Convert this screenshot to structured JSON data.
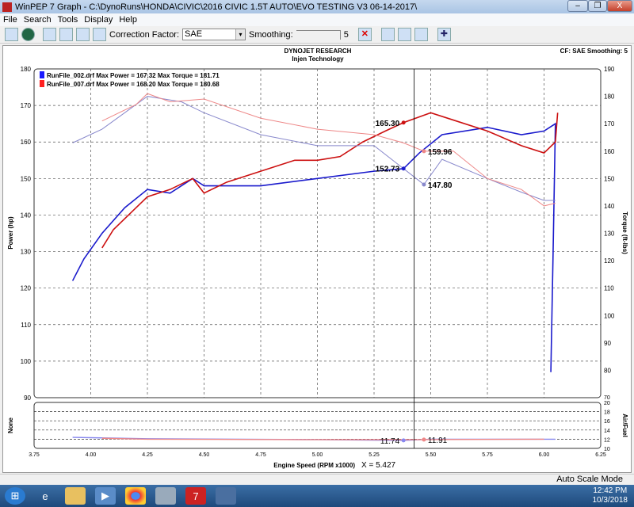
{
  "window": {
    "title": "WinPEP 7    Graph - C:\\DynoRuns\\HONDA\\CIVIC\\2016 CIVIC 1.5T AUTO\\EVO TESTING V3 06-14-2017\\",
    "minimize": "–",
    "maximize": "❐",
    "close": "X"
  },
  "menu": [
    "File",
    "Search",
    "Tools",
    "Display",
    "Help"
  ],
  "toolbar": {
    "correction_label": "Correction Factor:",
    "correction_value": "SAE",
    "smoothing_label": "Smoothing:",
    "smoothing_value": "5"
  },
  "graph": {
    "header1": "DYNOJET RESEARCH",
    "header2": "Injen Technology",
    "cf_info": "CF: SAE  Smoothing: 5",
    "cursor_readout": "X = 5.427"
  },
  "legend": [
    {
      "text": "RunFile_002.drf Max Power = 167.32 Max Torque = 181.71",
      "color": "#1a1aff"
    },
    {
      "text": "RunFile_007.drf Max Power = 168.20 Max Torque = 180.68",
      "color": "#ff2020"
    }
  ],
  "chart_data": {
    "type": "line",
    "xlabel": "Engine Speed (RPM x1000)",
    "xlim": [
      3.75,
      6.25
    ],
    "xticks": [
      "3.75",
      "4.00",
      "4.25",
      "4.50",
      "4.75",
      "5.00",
      "5.25",
      "5.50",
      "5.75",
      "6.00",
      "6.25"
    ],
    "cursor_x": 5.427,
    "main": {
      "ylabel_left": "Power (hp)",
      "ylim_left": [
        90,
        180
      ],
      "yticks_left": [
        "90",
        "100",
        "110",
        "120",
        "130",
        "140",
        "150",
        "160",
        "170",
        "180"
      ],
      "ylabel_right": "Torque (ft-lbs)",
      "ylim_right": [
        70,
        190
      ],
      "yticks_right": [
        "70",
        "80",
        "90",
        "100",
        "110",
        "120",
        "130",
        "140",
        "150",
        "160",
        "170",
        "180",
        "190"
      ],
      "series": [
        {
          "run": "RunFile_002.drf",
          "quantity": "power",
          "axis": "left",
          "color": "#1a1acc",
          "x": [
            3.92,
            3.97,
            4.05,
            4.15,
            4.25,
            4.35,
            4.45,
            4.5,
            4.75,
            5.0,
            5.25,
            5.38,
            5.45,
            5.55,
            5.75,
            5.9,
            6.0,
            6.05,
            6.04,
            6.03
          ],
          "y": [
            122,
            128,
            135,
            142,
            147,
            146,
            150,
            148,
            148,
            150,
            152,
            152.7,
            157,
            162,
            164,
            162,
            163,
            165,
            130,
            97
          ]
        },
        {
          "run": "RunFile_007.drf",
          "quantity": "power",
          "axis": "left",
          "color": "#cc1010",
          "x": [
            4.05,
            4.1,
            4.2,
            4.25,
            4.35,
            4.45,
            4.5,
            4.6,
            4.75,
            4.9,
            5.0,
            5.1,
            5.2,
            5.3,
            5.38,
            5.5,
            5.6,
            5.75,
            5.9,
            6.0,
            6.05,
            6.06
          ],
          "y": [
            131,
            136,
            142,
            145,
            147,
            150,
            146,
            149,
            152,
            155,
            155,
            156,
            160,
            163,
            165.3,
            168,
            166,
            163,
            159,
            157,
            160,
            168
          ]
        },
        {
          "run": "RunFile_002.drf",
          "quantity": "torque",
          "axis": "right",
          "color": "#8888cc",
          "x": [
            3.92,
            4.05,
            4.2,
            4.25,
            4.4,
            4.5,
            4.75,
            5.0,
            5.25,
            5.47,
            5.55,
            5.75,
            5.9,
            6.0,
            6.05
          ],
          "y": [
            163,
            168,
            177,
            180,
            178,
            174,
            166,
            162,
            162,
            147.8,
            157,
            150,
            145,
            142,
            142
          ]
        },
        {
          "run": "RunFile_007.drf",
          "quantity": "torque",
          "axis": "right",
          "color": "#ee8888",
          "x": [
            4.05,
            4.2,
            4.25,
            4.35,
            4.5,
            4.75,
            5.0,
            5.25,
            5.38,
            5.47,
            5.6,
            5.75,
            5.9,
            6.0,
            6.05
          ],
          "y": [
            171,
            177,
            181,
            178,
            179,
            172,
            168,
            166,
            163,
            159.96,
            160,
            150,
            146,
            140,
            141
          ]
        }
      ],
      "markers": [
        {
          "label": "165.30",
          "x": 5.38,
          "y": 165.3,
          "axis": "left",
          "color": "#cc1010"
        },
        {
          "label": "152.73",
          "x": 5.38,
          "y": 152.73,
          "axis": "left",
          "color": "#1a1acc"
        },
        {
          "label": "159.96",
          "x": 5.47,
          "y": 159.96,
          "axis": "right",
          "color": "#ee8888"
        },
        {
          "label": "147.80",
          "x": 5.47,
          "y": 147.8,
          "axis": "right",
          "color": "#8888cc"
        }
      ]
    },
    "lower": {
      "ylabel_left": "None",
      "ylabel_right": "Air/Fuel",
      "ylim_right": [
        10,
        20
      ],
      "yticks_right": [
        "10",
        "12",
        "14",
        "16",
        "18",
        "20"
      ],
      "series": [
        {
          "run": "RunFile_002.drf",
          "color": "#8888ee",
          "x": [
            3.92,
            4.25,
            5.0,
            5.38,
            5.5,
            6.05
          ],
          "y": [
            12.4,
            12.1,
            11.9,
            11.74,
            12.0,
            12.0
          ]
        },
        {
          "run": "RunFile_007.drf",
          "color": "#ee8888",
          "x": [
            4.05,
            4.25,
            5.0,
            5.47,
            6.0
          ],
          "y": [
            12.2,
            12.0,
            11.9,
            11.91,
            12.0
          ]
        }
      ],
      "markers": [
        {
          "label": "11.74",
          "x": 5.38,
          "y": 11.74,
          "color": "#8888ee"
        },
        {
          "label": "11.91",
          "x": 5.47,
          "y": 11.91,
          "color": "#ee8888"
        }
      ]
    }
  },
  "status": {
    "mode": "Auto Scale Mode"
  },
  "taskbar": {
    "time": "12:42 PM",
    "date": "10/3/2018"
  }
}
